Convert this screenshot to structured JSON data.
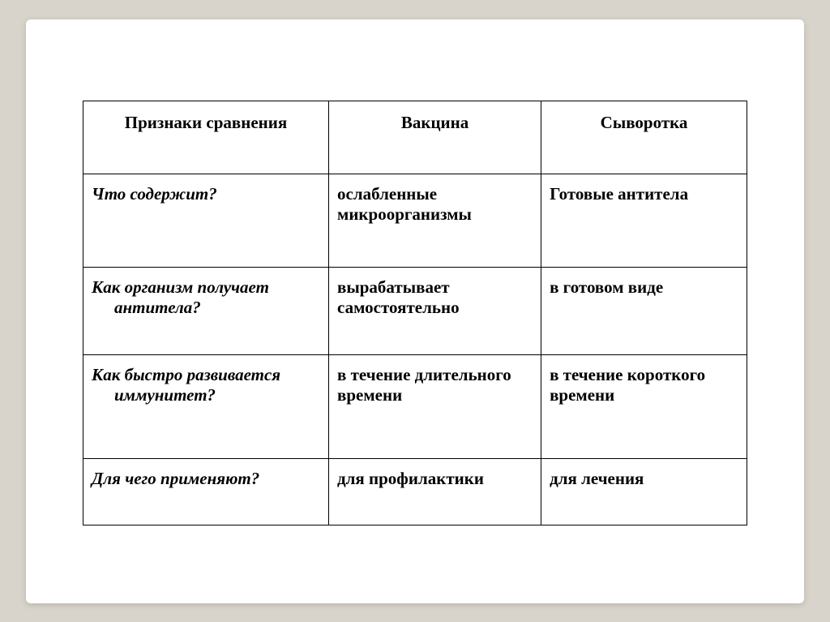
{
  "table": {
    "headers": {
      "col1": "Признаки сравнения",
      "col2": "Вакцина",
      "col3": "Сыворотка"
    },
    "rows": [
      {
        "label_line1": "Что содержит?",
        "label_line2": "",
        "vaccine": "ослабленные микроорганизмы",
        "serum": "Готовые  антитела"
      },
      {
        "label_line1": "Как организм получает",
        "label_line2": "антитела?",
        "vaccine": "вырабатывает самостоятельно",
        "serum": "в готовом виде"
      },
      {
        "label_line1": "Как быстро развивается",
        "label_line2": "иммунитет?",
        "vaccine": "в течение длительного времени",
        "serum": "в течение короткого времени"
      },
      {
        "label_line1": "Для чего применяют?",
        "label_line2": "",
        "vaccine": "для профилактики",
        "serum": "для лечения"
      }
    ]
  },
  "colors": {
    "page_bg": "#d9d4cb",
    "card_bg": "#ffffff",
    "border": "#000000",
    "text": "#000000"
  }
}
